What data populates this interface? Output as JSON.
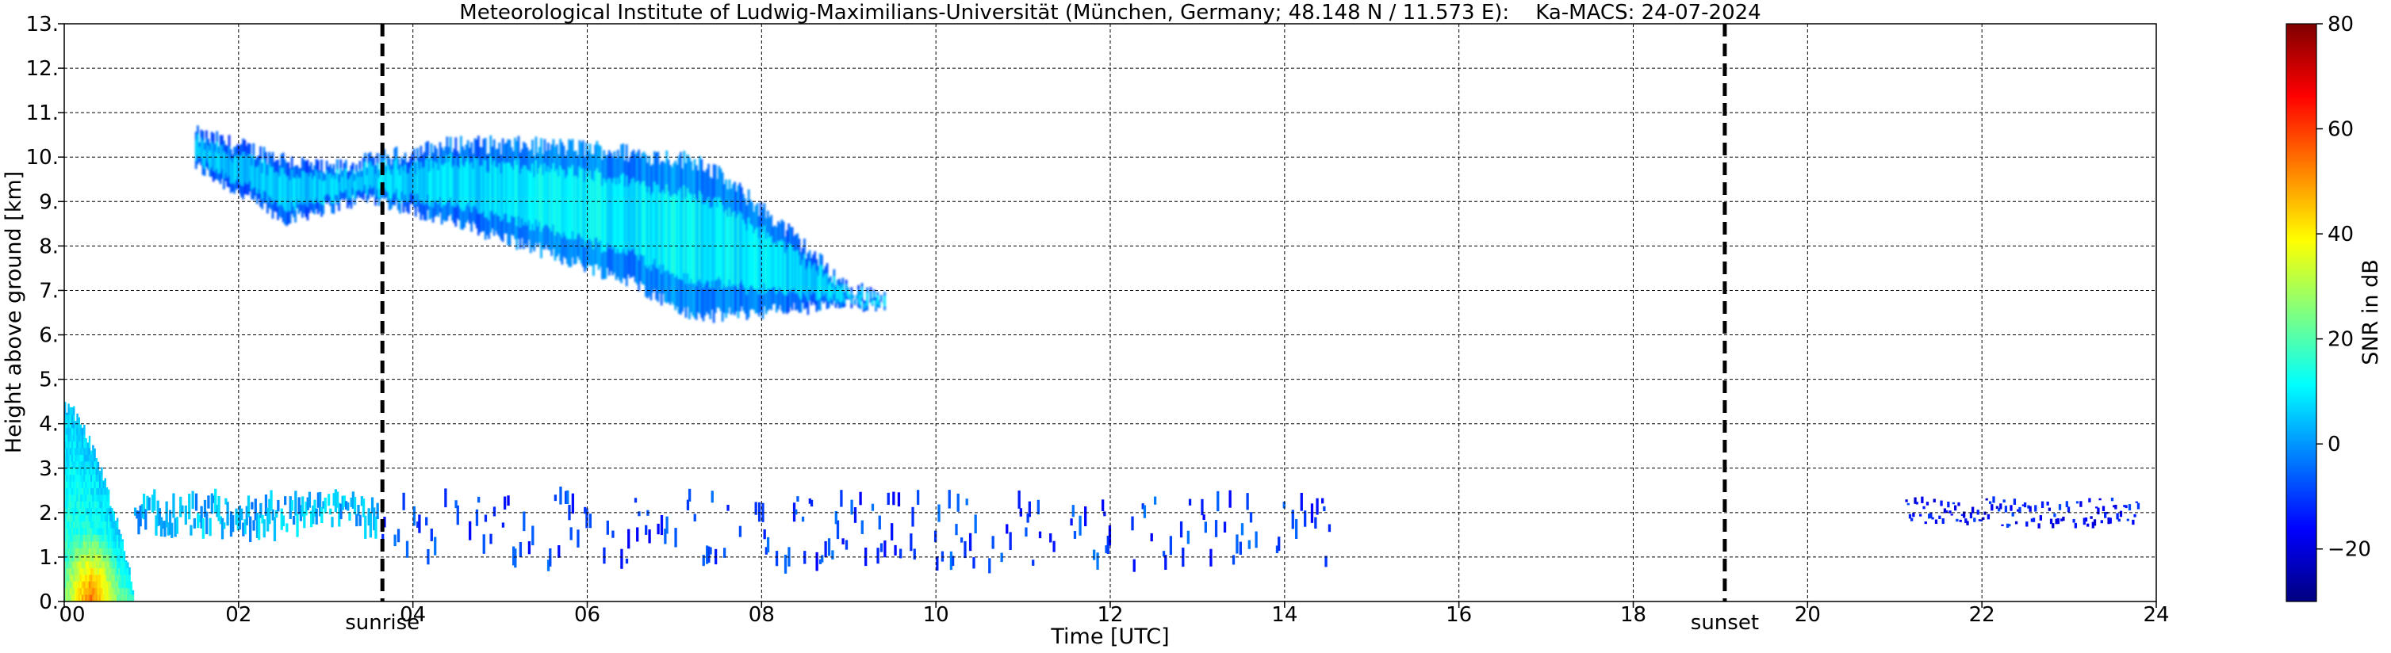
{
  "chart_data": {
    "type": "heatmap",
    "title": "Meteorological Institute of Ludwig-Maximilians-Universität (München, Germany; 48.148 N / 11.573 E):    Ka-MACS: 24-07-2024",
    "xlabel": "Time [UTC]",
    "ylabel": "Height above ground [km]",
    "xlim": [
      0,
      24
    ],
    "ylim": [
      0,
      13
    ],
    "x_ticks": [
      0,
      2,
      4,
      6,
      8,
      10,
      12,
      14,
      16,
      18,
      20,
      22,
      24
    ],
    "x_tick_labels": [
      "00",
      "02",
      "04",
      "06",
      "08",
      "10",
      "12",
      "14",
      "16",
      "18",
      "20",
      "22",
      "24"
    ],
    "y_ticks": [
      0,
      1,
      2,
      3,
      4,
      5,
      6,
      7,
      8,
      9,
      10,
      11,
      12,
      13
    ],
    "y_tick_labels": [
      "0.",
      "1.",
      "2.",
      "3.",
      "4.",
      "5.",
      "6.",
      "7.",
      "8.",
      "9.",
      "10.",
      "11.",
      "12.",
      "13."
    ],
    "grid": true,
    "colorbar": {
      "label": "SNR in dB",
      "range": [
        -30,
        80
      ],
      "ticks": [
        -20,
        0,
        20,
        40,
        60,
        80
      ],
      "tick_labels": [
        "−20",
        "0",
        "20",
        "40",
        "60",
        "80"
      ],
      "colormap": "jet",
      "colors": [
        "#00007f",
        "#0000ff",
        "#007fff",
        "#00ffff",
        "#7fff7f",
        "#ffff00",
        "#ff7f00",
        "#ff0000",
        "#7f0000"
      ]
    },
    "annotations": [
      {
        "label": "sunrise",
        "x": 3.65
      },
      {
        "label": "sunset",
        "x": 19.05
      }
    ],
    "features": [
      {
        "name": "cirrus band",
        "x_start": 1.5,
        "x_end": 9.4,
        "y_top": [
          [
            1.5,
            10.5
          ],
          [
            3.0,
            9.7
          ],
          [
            4.5,
            10.3
          ],
          [
            6.0,
            10.2
          ],
          [
            7.3,
            9.9
          ],
          [
            8.2,
            8.5
          ],
          [
            9.0,
            7.0
          ],
          [
            9.4,
            6.9
          ]
        ],
        "y_bottom": [
          [
            1.5,
            9.8
          ],
          [
            2.5,
            8.6
          ],
          [
            3.5,
            9.1
          ],
          [
            5.0,
            8.2
          ],
          [
            6.5,
            7.2
          ],
          [
            7.2,
            6.4
          ],
          [
            8.5,
            6.6
          ],
          [
            9.4,
            6.7
          ]
        ],
        "snr_db": 5
      },
      {
        "name": "boundary layer",
        "x_start": 0.0,
        "x_end": 0.8,
        "y_top": 4.2,
        "snr_db": 20
      },
      {
        "name": "low cloud layer",
        "x_start": 0.8,
        "x_end": 3.6,
        "y_range": [
          1.6,
          2.3
        ],
        "snr_db": 3
      },
      {
        "name": "broken low cloud",
        "x_start": 3.6,
        "x_end": 14.5,
        "y_range": [
          0.8,
          2.4
        ],
        "snr_db": -10
      },
      {
        "name": "evening low cloud",
        "x_start": 21.1,
        "x_end": 23.8,
        "y_range": [
          1.7,
          2.3
        ],
        "snr_db": -15
      }
    ]
  }
}
